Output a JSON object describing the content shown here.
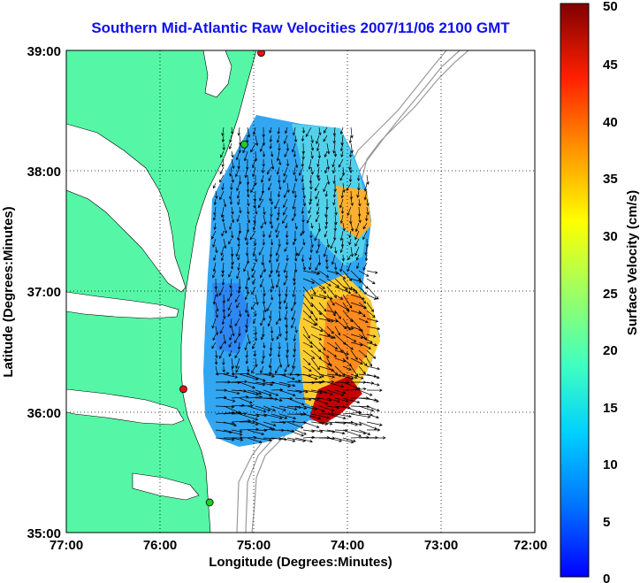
{
  "title": "Southern Mid-Atlantic Raw Velocities 2007/11/06 2100 GMT",
  "chart_data": {
    "type": "heatmap",
    "title": "Southern Mid-Atlantic Raw Velocities 2007/11/06 2100 GMT",
    "xlabel": "Longitude (Degrees:Minutes)",
    "ylabel": "Latitude (Degrees:Minutes)",
    "x_ticks": [
      "77:00",
      "76:00",
      "75:00",
      "74:00",
      "73:00",
      "72:00"
    ],
    "y_ticks": [
      "39:00",
      "38:00",
      "37:00",
      "36:00",
      "35:00"
    ],
    "x_range_deg_west": [
      77,
      72
    ],
    "y_range_deg_north": [
      35,
      39
    ],
    "grid": "dotted",
    "colorbar": {
      "label": "Surface Velocity (cm/s)",
      "min": 0,
      "max": 50,
      "ticks": [
        "50",
        "45",
        "40",
        "35",
        "30",
        "25",
        "20",
        "15",
        "10",
        "5",
        "0"
      ],
      "colormap": "jet"
    },
    "land_color": "#55f7a6",
    "vector_color": "#000000",
    "high_velocity_region": {
      "lon_west": 74.1,
      "lat_north": 36.3,
      "speed_cm_s": 50
    },
    "stations": [
      {
        "lon_west": 74.92,
        "lat_north": 38.98,
        "color": "#ee1111"
      },
      {
        "lon_west": 75.1,
        "lat_north": 38.22,
        "color": "#22cc22"
      },
      {
        "lon_west": 75.75,
        "lat_north": 36.19,
        "color": "#ee1111"
      },
      {
        "lon_west": 75.47,
        "lat_north": 35.25,
        "color": "#22cc22"
      }
    ]
  }
}
